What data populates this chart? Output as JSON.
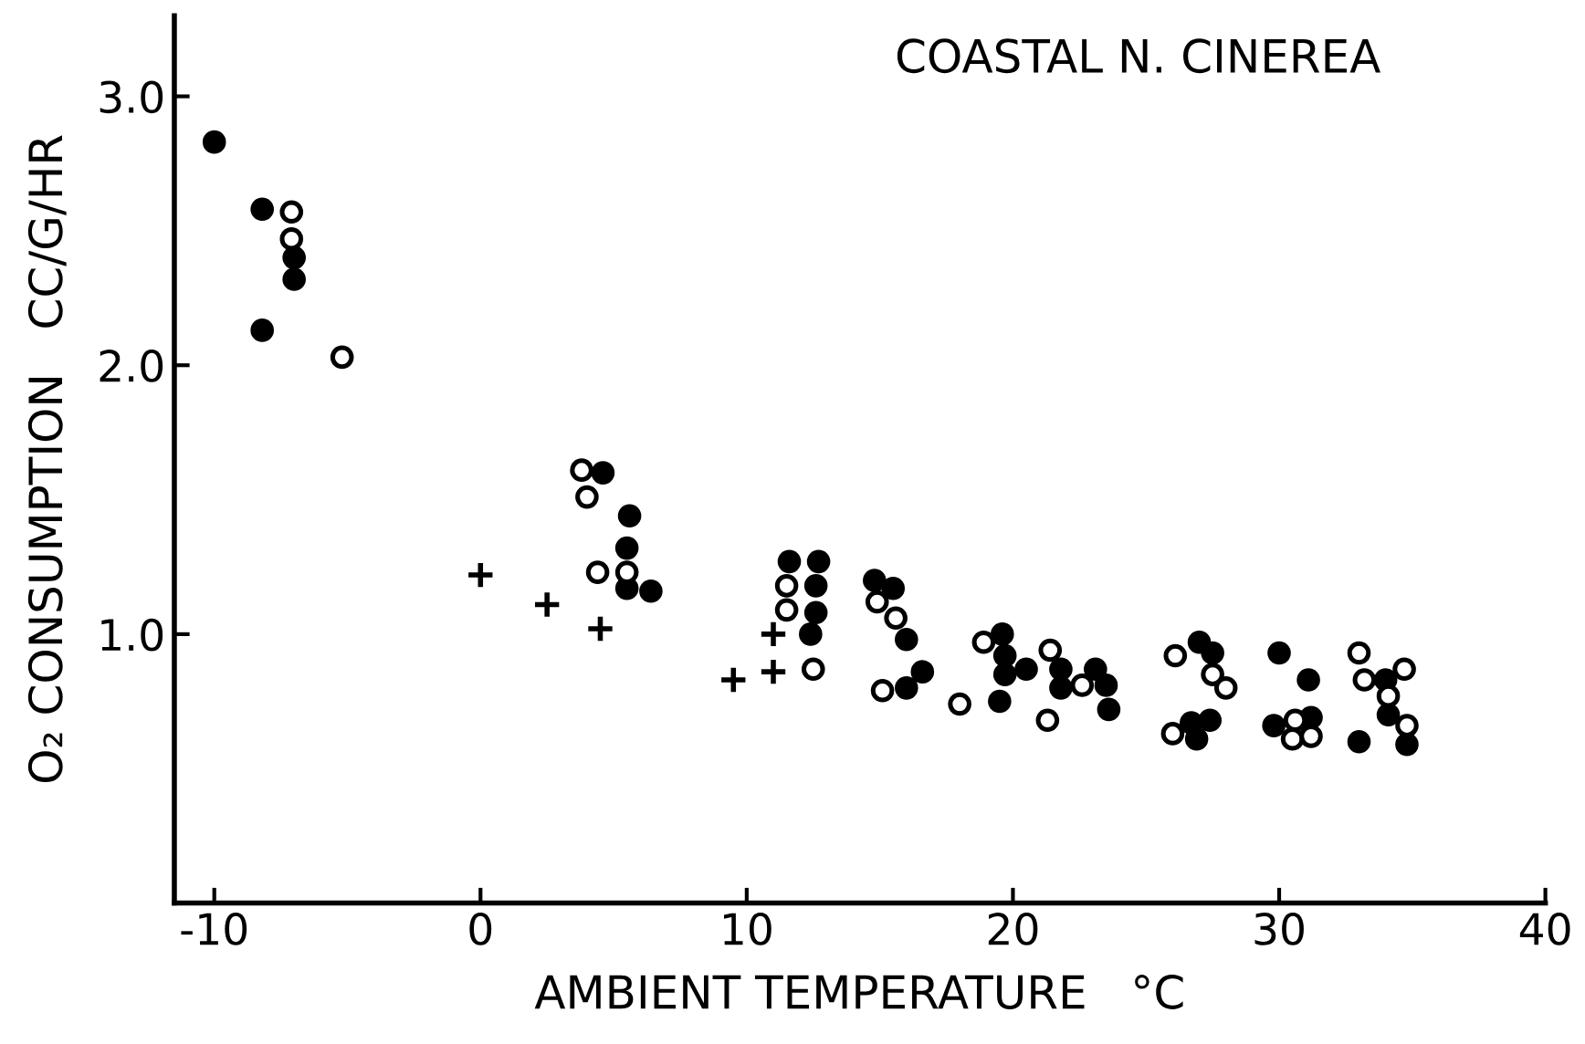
{
  "chart_data": {
    "type": "scatter",
    "title": "COASTAL N. CINEREA",
    "xlabel": "AMBIENT TEMPERATURE   °C",
    "ylabel": "O₂ CONSUMPTION   CC/G/HR",
    "xlim": [
      -11.5,
      40
    ],
    "ylim": [
      0,
      3.3
    ],
    "xticks": [
      -10,
      0,
      10,
      20,
      30,
      40
    ],
    "yticks": [
      {
        "value": 1.0,
        "label": "1.0"
      },
      {
        "value": 2.0,
        "label": "2.0"
      },
      {
        "value": 3.0,
        "label": "3.0"
      }
    ],
    "grid": false,
    "legend": false,
    "series": [
      {
        "color": "#000000",
        "marker": "circle",
        "x": [
          -10.0,
          -8.2,
          -7.0,
          -7.0,
          -8.2,
          4.6,
          5.6,
          5.5,
          5.5,
          6.4,
          11.6,
          12.7,
          12.6,
          12.6,
          12.4,
          14.8,
          15.5,
          16.0,
          16.6,
          16.0,
          19.6,
          19.7,
          19.7,
          20.5,
          19.5,
          21.8,
          21.8,
          23.1,
          23.5,
          23.6,
          27.0,
          27.5,
          26.7,
          27.4,
          26.9,
          30.0,
          31.1,
          29.8,
          31.2,
          34.0,
          34.1,
          33.0,
          34.8
        ],
        "values": [
          2.83,
          2.58,
          2.4,
          2.32,
          2.13,
          1.6,
          1.44,
          1.32,
          1.17,
          1.16,
          1.27,
          1.27,
          1.18,
          1.08,
          1.0,
          1.2,
          1.17,
          0.98,
          0.86,
          0.8,
          1.0,
          0.92,
          0.85,
          0.87,
          0.75,
          0.87,
          0.8,
          0.87,
          0.81,
          0.72,
          0.97,
          0.93,
          0.67,
          0.68,
          0.61,
          0.93,
          0.83,
          0.66,
          0.69,
          0.83,
          0.7,
          0.6,
          0.59
        ]
      },
      {
        "color": "#ffffff",
        "marker": "circle",
        "x": [
          -7.1,
          -7.1,
          -5.2,
          3.8,
          4.0,
          4.4,
          5.5,
          11.5,
          11.5,
          12.5,
          14.9,
          15.6,
          15.1,
          18.0,
          18.9,
          21.4,
          22.6,
          21.3,
          26.1,
          27.5,
          28.0,
          26.0,
          30.6,
          30.5,
          31.2,
          33.0,
          33.2,
          34.7,
          34.1,
          34.8
        ],
        "values": [
          2.57,
          2.47,
          2.03,
          1.61,
          1.51,
          1.23,
          1.23,
          1.18,
          1.09,
          0.87,
          1.12,
          1.06,
          0.79,
          0.74,
          0.97,
          0.94,
          0.81,
          0.68,
          0.92,
          0.85,
          0.8,
          0.63,
          0.68,
          0.61,
          0.62,
          0.93,
          0.83,
          0.87,
          0.77,
          0.66
        ]
      },
      {
        "color": "#000000",
        "marker": "cross",
        "x": [
          0.0,
          2.5,
          4.5,
          11.0,
          9.5,
          11.0
        ],
        "values": [
          1.22,
          1.11,
          1.02,
          1.0,
          0.83,
          0.86
        ]
      }
    ]
  }
}
